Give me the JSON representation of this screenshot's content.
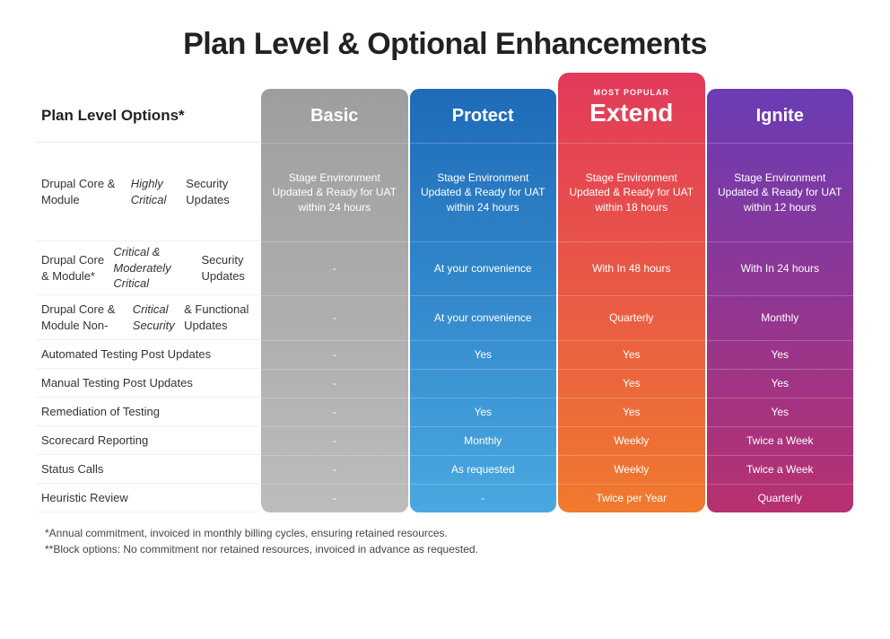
{
  "title": "Plan Level & Optional Enhancements",
  "options_header": "Plan Level Options*",
  "colors": {
    "basic_gradient_top": "#9e9e9e",
    "basic_gradient_bottom": "#bcbcbc",
    "protect_gradient_top": "#1e6bb8",
    "protect_gradient_bottom": "#4aa8e0",
    "extend_gradient_top": "#e23a5b",
    "extend_gradient_bottom": "#f07a2e",
    "ignite_gradient_top": "#6a3cb5",
    "ignite_gradient_bottom": "#b8316f"
  },
  "plans": {
    "basic": {
      "name": "Basic",
      "badge": ""
    },
    "protect": {
      "name": "Protect",
      "badge": ""
    },
    "extend": {
      "name": "Extend",
      "badge": "MOST POPULAR"
    },
    "ignite": {
      "name": "Ignite",
      "badge": ""
    }
  },
  "rows": [
    {
      "height": "h-lg",
      "label_html": "Drupal Core & Module <i>Highly Critical</i> Security Updates",
      "basic": "Stage Environment Updated & Ready for UAT within 24 hours",
      "protect": "Stage Environment Updated & Ready for UAT within 24 hours",
      "extend": "Stage Environment Updated & Ready for UAT within 18 hours",
      "ignite": "Stage Environment Updated & Ready for UAT within 12 hours"
    },
    {
      "height": "h-md",
      "label_html": "Drupal Core & Module* <i>Critical & Moderately Critical</i> Security Updates",
      "basic": "-",
      "protect": "At your convenience",
      "extend": "With In 48 hours",
      "ignite": "With In 24 hours"
    },
    {
      "height": "h-mdsm",
      "label_html": "Drupal Core & Module Non-<i>Critical Security</i> &  Functional Updates",
      "basic": "-",
      "protect": "At your convenience",
      "extend": "Quarterly",
      "ignite": "Monthly"
    },
    {
      "height": "h-sm",
      "label_html": "Automated Testing Post Updates",
      "basic": "-",
      "protect": "Yes",
      "extend": "Yes",
      "ignite": "Yes"
    },
    {
      "height": "h-sm",
      "label_html": "Manual Testing Post Updates",
      "basic": "-",
      "protect": "",
      "extend": "Yes",
      "ignite": "Yes"
    },
    {
      "height": "h-sm",
      "label_html": "Remediation of Testing",
      "basic": "-",
      "protect": "Yes",
      "extend": "Yes",
      "ignite": "Yes"
    },
    {
      "height": "h-sm",
      "label_html": "Scorecard Reporting",
      "basic": "-",
      "protect": "Monthly",
      "extend": "Weekly",
      "ignite": "Twice a Week"
    },
    {
      "height": "h-sm",
      "label_html": "Status Calls",
      "basic": "-",
      "protect": "As requested",
      "extend": "Weekly",
      "ignite": "Twice a Week"
    },
    {
      "height": "h-sm",
      "label_html": "Heuristic Review",
      "basic": "-",
      "protect": "-",
      "extend": "Twice per Year",
      "ignite": "Quarterly"
    }
  ],
  "footnotes": [
    "*Annual commitment, invoiced in monthly billing cycles, ensuring retained resources.",
    "**Block options: No commitment nor retained resources, invoiced in advance as requested."
  ]
}
